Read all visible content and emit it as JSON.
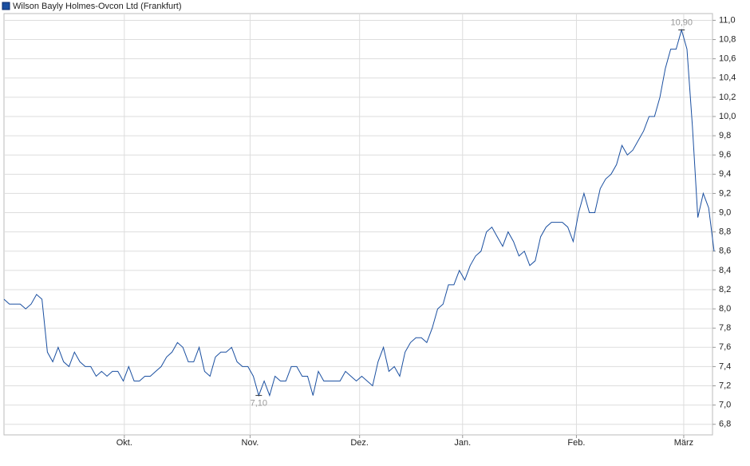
{
  "chart_data": {
    "type": "line",
    "title": "Wilson Bayly Holmes-Ovcon Ltd (Frankfurt)",
    "color": "#1a4fa0",
    "grid": true,
    "values": [
      8.1,
      8.05,
      8.05,
      8.05,
      8.0,
      8.05,
      8.15,
      8.1,
      7.55,
      7.45,
      7.6,
      7.45,
      7.4,
      7.55,
      7.45,
      7.4,
      7.4,
      7.3,
      7.35,
      7.3,
      7.35,
      7.35,
      7.25,
      7.4,
      7.25,
      7.25,
      7.3,
      7.3,
      7.35,
      7.4,
      7.5,
      7.55,
      7.65,
      7.6,
      7.45,
      7.45,
      7.6,
      7.35,
      7.3,
      7.5,
      7.55,
      7.55,
      7.6,
      7.45,
      7.4,
      7.4,
      7.3,
      7.1,
      7.25,
      7.1,
      7.3,
      7.25,
      7.25,
      7.4,
      7.4,
      7.3,
      7.3,
      7.1,
      7.35,
      7.25,
      7.25,
      7.25,
      7.25,
      7.35,
      7.3,
      7.25,
      7.3,
      7.25,
      7.2,
      7.45,
      7.6,
      7.35,
      7.4,
      7.3,
      7.55,
      7.65,
      7.7,
      7.7,
      7.65,
      7.8,
      8.0,
      8.05,
      8.25,
      8.25,
      8.4,
      8.3,
      8.45,
      8.55,
      8.6,
      8.8,
      8.85,
      8.75,
      8.65,
      8.8,
      8.7,
      8.55,
      8.6,
      8.45,
      8.5,
      8.75,
      8.85,
      8.9,
      8.9,
      8.9,
      8.85,
      8.7,
      9.0,
      9.2,
      9.0,
      9.0,
      9.25,
      9.35,
      9.4,
      9.5,
      9.7,
      9.6,
      9.65,
      9.75,
      9.85,
      10.0,
      10.0,
      10.2,
      10.5,
      10.7,
      10.7,
      10.9,
      10.7,
      9.9,
      8.95,
      9.2,
      9.05,
      8.6
    ],
    "xlim": [
      0,
      131
    ],
    "xticks": [
      {
        "value": 22.2,
        "label": "Okt."
      },
      {
        "value": 45.4,
        "label": "Nov."
      },
      {
        "value": 65.6,
        "label": "Dez."
      },
      {
        "value": 84.6,
        "label": "Jan."
      },
      {
        "value": 105.6,
        "label": "Feb."
      },
      {
        "value": 125.4,
        "label": "März"
      }
    ],
    "ylim": [
      6.69,
      11.07
    ],
    "yticks": [
      {
        "value": 6.8,
        "label": "6,8"
      },
      {
        "value": 7.0,
        "label": "7,0"
      },
      {
        "value": 7.2,
        "label": "7,2"
      },
      {
        "value": 7.4,
        "label": "7,4"
      },
      {
        "value": 7.6,
        "label": "7,6"
      },
      {
        "value": 7.8,
        "label": "7,8"
      },
      {
        "value": 8.0,
        "label": "8,0"
      },
      {
        "value": 8.2,
        "label": "8,2"
      },
      {
        "value": 8.4,
        "label": "8,4"
      },
      {
        "value": 8.6,
        "label": "8,6"
      },
      {
        "value": 8.8,
        "label": "8,8"
      },
      {
        "value": 9.0,
        "label": "9,0"
      },
      {
        "value": 9.2,
        "label": "9,2"
      },
      {
        "value": 9.4,
        "label": "9,4"
      },
      {
        "value": 9.6,
        "label": "9,6"
      },
      {
        "value": 9.8,
        "label": "9,8"
      },
      {
        "value": 10.0,
        "label": "10,0"
      },
      {
        "value": 10.2,
        "label": "10,2"
      },
      {
        "value": 10.4,
        "label": "10,4"
      },
      {
        "value": 10.6,
        "label": "10,6"
      },
      {
        "value": 10.8,
        "label": "10,8"
      },
      {
        "value": 11.0,
        "label": "11,0"
      }
    ],
    "annotations": [
      {
        "x": 125,
        "value": 10.9,
        "label": "10,90",
        "position": "above"
      },
      {
        "x": 47,
        "value": 7.1,
        "label": "7,10",
        "position": "below"
      }
    ]
  }
}
